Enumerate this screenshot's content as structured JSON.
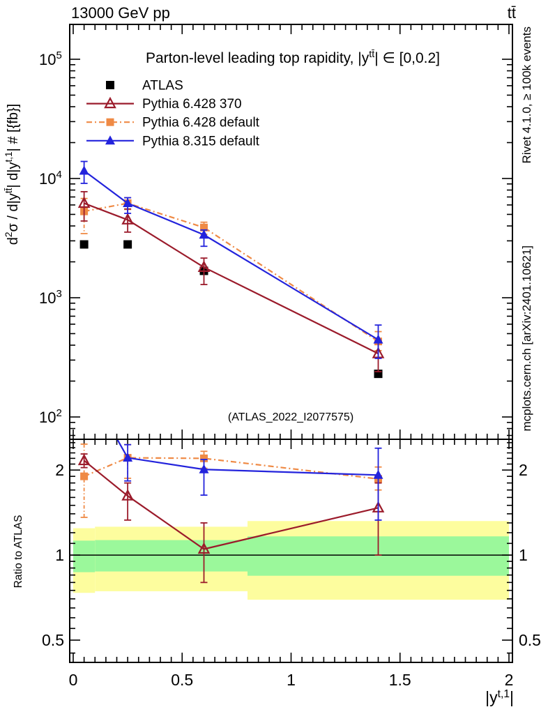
{
  "header": {
    "left": "13000 GeV pp",
    "right": "tt̄"
  },
  "side_texts": {
    "rivet": "Rivet 4.1.0, ≥ 100k events",
    "mcplots": "mcplots.cern.ch [arXiv:2401.10621]"
  },
  "watermark": "(ATLAS_2022_I2077575)",
  "chart_data": {
    "type": "line",
    "title_runs": [
      {
        "t": "Parton-level leading top rapidity, |y"
      },
      {
        "sup": "tt̄"
      },
      {
        "t": "| ∈ [0,0.2]"
      }
    ],
    "ylabel_runs": [
      {
        "t": "d"
      },
      {
        "sup": "2"
      },
      {
        "t": "σ / d|y"
      },
      {
        "sup": "tt̄"
      },
      {
        "t": "| d|y"
      },
      {
        "sup": "t,1"
      },
      {
        "t": "| # [{fb}]"
      }
    ],
    "xlabel_runs": [
      {
        "t": "|y"
      },
      {
        "sup": "t,1"
      },
      {
        "t": "|"
      }
    ],
    "ratio_ylabel": "Ratio to ATLAS",
    "xlim": [
      -0.016,
      2.016
    ],
    "main_ylim": [
      65,
      196000
    ],
    "main_ylog": true,
    "ratio_ylim": [
      0.417,
      2.57
    ],
    "ratio_ylog": true,
    "grid": false,
    "legend_position": "top-left",
    "x_major_ticks": [
      {
        "v": 0,
        "label": "0"
      },
      {
        "v": 0.5,
        "label": "0.5"
      },
      {
        "v": 1,
        "label": "1"
      },
      {
        "v": 1.5,
        "label": "1.5"
      },
      {
        "v": 2,
        "label": "2"
      }
    ],
    "x_minor_step": 0.05,
    "y_major_ticks": [
      {
        "v": 100,
        "base": "10",
        "exp": "2"
      },
      {
        "v": 1000,
        "base": "10",
        "exp": "3"
      },
      {
        "v": 10000,
        "base": "10",
        "exp": "4"
      },
      {
        "v": 100000,
        "base": "10",
        "exp": "5"
      }
    ],
    "ratio_major_ticks": [
      {
        "v": 0.5,
        "label": "0.5"
      },
      {
        "v": 1,
        "label": "1"
      },
      {
        "v": 2,
        "label": "2"
      }
    ],
    "x": [
      0.05,
      0.25,
      0.6,
      1.4
    ],
    "bin_edges": [
      0,
      0.1,
      0.4,
      0.8,
      2.0
    ],
    "series": [
      {
        "name": "ATLAS",
        "color": "#000000",
        "marker": "square",
        "line": "none",
        "values": [
          2800,
          2800,
          1680,
          230
        ]
      },
      {
        "name": "Pythia 6.428 370",
        "color": "#9b1b2b",
        "marker": "triangle-open",
        "line": "solid",
        "values": [
          6200,
          4500,
          1800,
          340
        ],
        "err_lo": [
          4400,
          3550,
          1290,
          240
        ],
        "err_hi": [
          7750,
          5550,
          2150,
          430
        ],
        "ratio": [
          2.16,
          1.62,
          1.05,
          1.47
        ],
        "ratio_err_lo": [
          2.04,
          1.33,
          0.8,
          1.0
        ],
        "ratio_err_hi": [
          2.28,
          1.8,
          1.3,
          1.8
        ]
      },
      {
        "name": "Pythia 6.428 default",
        "color": "#ef8a45",
        "marker": "square",
        "line": "dashdot",
        "values": [
          5300,
          6200,
          3880,
          430
        ],
        "err_lo": [
          3450,
          5500,
          3400,
          360
        ],
        "err_hi": [
          6800,
          6900,
          4300,
          520
        ],
        "ratio": [
          1.9,
          2.21,
          2.2,
          1.86
        ],
        "ratio_err_lo": [
          1.36,
          1.87,
          2.03,
          1.7
        ],
        "ratio_err_hi": [
          2.47,
          2.46,
          2.33,
          2.05
        ]
      },
      {
        "name": "Pythia 8.315 default",
        "color": "#2323dc",
        "marker": "triangle",
        "line": "solid",
        "values": [
          11600,
          6200,
          3370,
          445
        ],
        "err_lo": [
          9100,
          5100,
          2700,
          310
        ],
        "err_hi": [
          13900,
          6900,
          3700,
          590
        ],
        "ratio": [
          4.14,
          2.21,
          2.01,
          1.92
        ],
        "ratio_err_lo": [
          null,
          1.83,
          1.63,
          1.33
        ],
        "ratio_err_hi": [
          null,
          2.46,
          2.18,
          2.39
        ]
      }
    ],
    "draw_order": [
      2,
      1,
      3
    ],
    "bands": {
      "green_color": "#9bf89b",
      "yellow_color": "#fdfd9e",
      "green_lo": [
        0.87,
        0.875,
        0.875,
        0.845
      ],
      "green_hi": [
        1.125,
        1.13,
        1.13,
        1.165
      ],
      "yellow_lo": [
        0.735,
        0.745,
        0.745,
        0.695
      ],
      "yellow_hi": [
        1.245,
        1.26,
        1.26,
        1.32
      ]
    }
  }
}
